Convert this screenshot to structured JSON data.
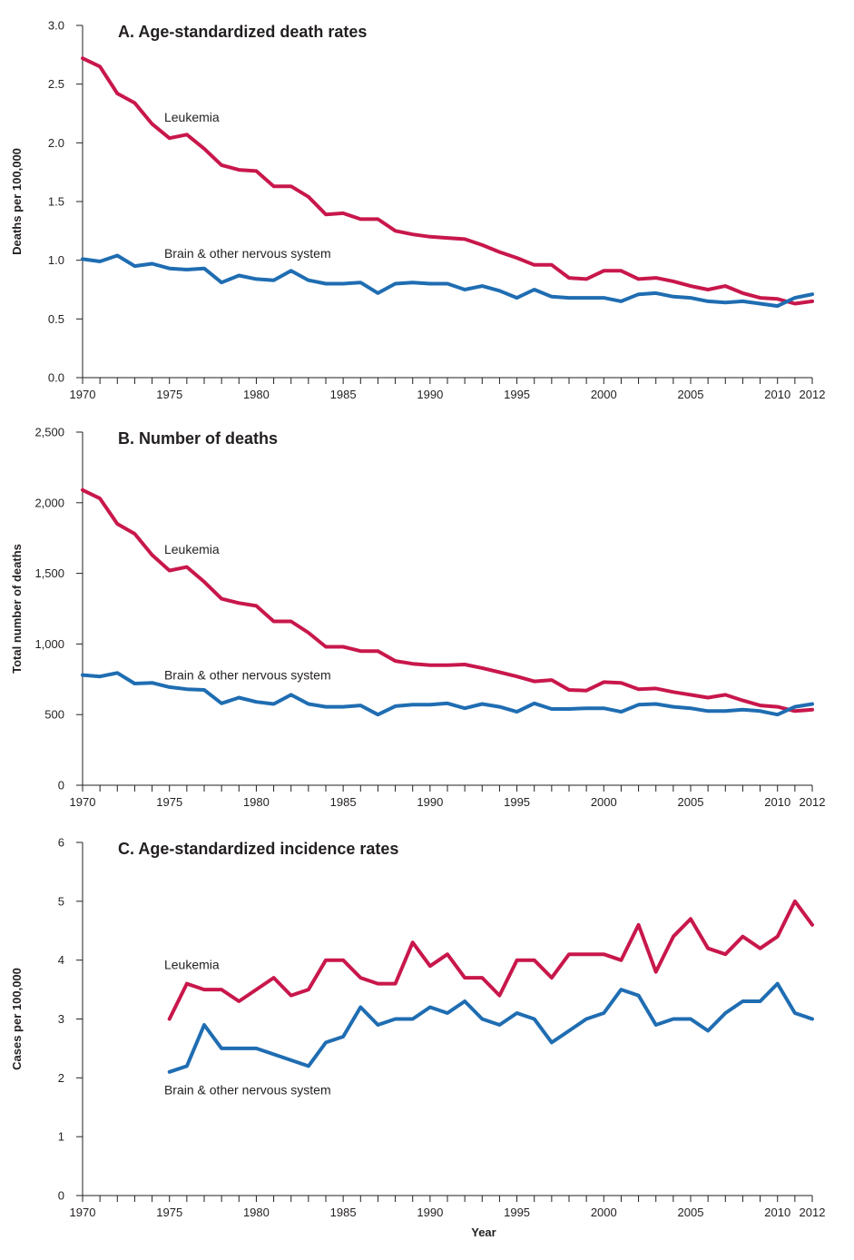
{
  "chart_data": [
    {
      "type": "line",
      "title": "A. Age-standardized death rates",
      "ylabel": "Deaths per 100,000",
      "xlabel": "",
      "ylim": [
        0,
        3.0
      ],
      "xlim": [
        1970,
        2012
      ],
      "yticks": [
        0.0,
        0.5,
        1.0,
        1.5,
        2.0,
        2.5,
        3.0
      ],
      "ytick_labels": [
        "0.0",
        "0.5",
        "1.0",
        "1.5",
        "2.0",
        "2.5",
        "3.0"
      ],
      "xtick_labels": [
        {
          "x": 1970,
          "label": "1970"
        },
        {
          "x": 1975,
          "label": "1975"
        },
        {
          "x": 1980,
          "label": "1980"
        },
        {
          "x": 1985,
          "label": "1985"
        },
        {
          "x": 1990,
          "label": "1990"
        },
        {
          "x": 1995,
          "label": "1995"
        },
        {
          "x": 2000,
          "label": "2000"
        },
        {
          "x": 2005,
          "label": "2005"
        },
        {
          "x": 2010,
          "label": "2010"
        },
        {
          "x": 2012,
          "label": "2012"
        }
      ],
      "grid": false,
      "legend": "inline annotations",
      "series": [
        {
          "name": "Leukemia",
          "color": "#c8174b",
          "x": [
            1970,
            1971,
            1972,
            1973,
            1974,
            1975,
            1976,
            1977,
            1978,
            1979,
            1980,
            1981,
            1982,
            1983,
            1984,
            1985,
            1986,
            1987,
            1988,
            1989,
            1990,
            1991,
            1992,
            1993,
            1994,
            1995,
            1996,
            1997,
            1998,
            1999,
            2000,
            2001,
            2002,
            2003,
            2004,
            2005,
            2006,
            2007,
            2008,
            2009,
            2010,
            2011,
            2012
          ],
          "values": [
            2.72,
            2.65,
            2.42,
            2.34,
            2.16,
            2.04,
            2.07,
            1.95,
            1.81,
            1.77,
            1.76,
            1.63,
            1.63,
            1.54,
            1.39,
            1.4,
            1.35,
            1.35,
            1.25,
            1.22,
            1.2,
            1.19,
            1.18,
            1.13,
            1.07,
            1.02,
            0.96,
            0.96,
            0.85,
            0.84,
            0.91,
            0.91,
            0.84,
            0.85,
            0.82,
            0.78,
            0.75,
            0.78,
            0.72,
            0.68,
            0.67,
            0.63,
            0.65
          ]
        },
        {
          "name": "Brain & other nervous system",
          "color": "#1f6db2",
          "x": [
            1970,
            1971,
            1972,
            1973,
            1974,
            1975,
            1976,
            1977,
            1978,
            1979,
            1980,
            1981,
            1982,
            1983,
            1984,
            1985,
            1986,
            1987,
            1988,
            1989,
            1990,
            1991,
            1992,
            1993,
            1994,
            1995,
            1996,
            1997,
            1998,
            1999,
            2000,
            2001,
            2002,
            2003,
            2004,
            2005,
            2006,
            2007,
            2008,
            2009,
            2010,
            2011,
            2012
          ],
          "values": [
            1.01,
            0.99,
            1.04,
            0.95,
            0.97,
            0.93,
            0.92,
            0.93,
            0.81,
            0.87,
            0.84,
            0.83,
            0.91,
            0.83,
            0.8,
            0.8,
            0.81,
            0.72,
            0.8,
            0.81,
            0.8,
            0.8,
            0.75,
            0.78,
            0.74,
            0.68,
            0.75,
            0.69,
            0.68,
            0.68,
            0.68,
            0.65,
            0.71,
            0.72,
            0.69,
            0.68,
            0.65,
            0.64,
            0.65,
            0.63,
            0.61,
            0.68,
            0.71
          ]
        }
      ],
      "annotations": [
        {
          "text": "Leukemia",
          "x": 1974.7,
          "y": 2.18
        },
        {
          "text": "Brain & other nervous system",
          "x": 1974.7,
          "y": 1.02
        }
      ]
    },
    {
      "type": "line",
      "title": "B. Number of deaths",
      "ylabel": "Total number of deaths",
      "xlabel": "",
      "ylim": [
        0,
        2500
      ],
      "xlim": [
        1970,
        2012
      ],
      "yticks": [
        0,
        500,
        1000,
        1500,
        2000,
        2500
      ],
      "ytick_labels": [
        "0",
        "500",
        "1,000",
        "1,500",
        "2,000",
        "2,500"
      ],
      "xtick_labels": [
        {
          "x": 1970,
          "label": "1970"
        },
        {
          "x": 1975,
          "label": "1975"
        },
        {
          "x": 1980,
          "label": "1980"
        },
        {
          "x": 1985,
          "label": "1985"
        },
        {
          "x": 1990,
          "label": "1990"
        },
        {
          "x": 1995,
          "label": "1995"
        },
        {
          "x": 2000,
          "label": "2000"
        },
        {
          "x": 2005,
          "label": "2005"
        },
        {
          "x": 2010,
          "label": "2010"
        },
        {
          "x": 2012,
          "label": "2012"
        }
      ],
      "grid": false,
      "legend": "inline annotations",
      "series": [
        {
          "name": "Leukemia",
          "color": "#c8174b",
          "x": [
            1970,
            1971,
            1972,
            1973,
            1974,
            1975,
            1976,
            1977,
            1978,
            1979,
            1980,
            1981,
            1982,
            1983,
            1984,
            1985,
            1986,
            1987,
            1988,
            1989,
            1990,
            1991,
            1992,
            1993,
            1994,
            1995,
            1996,
            1997,
            1998,
            1999,
            2000,
            2001,
            2002,
            2003,
            2004,
            2005,
            2006,
            2007,
            2008,
            2009,
            2010,
            2011,
            2012
          ],
          "values": [
            2090,
            2030,
            1850,
            1780,
            1630,
            1520,
            1545,
            1440,
            1320,
            1290,
            1270,
            1160,
            1160,
            1080,
            980,
            980,
            950,
            950,
            880,
            860,
            850,
            850,
            855,
            830,
            800,
            770,
            735,
            745,
            675,
            670,
            730,
            725,
            680,
            685,
            660,
            640,
            620,
            640,
            600,
            565,
            555,
            525,
            535
          ]
        },
        {
          "name": "Brain & other nervous system",
          "color": "#1f6db2",
          "x": [
            1970,
            1971,
            1972,
            1973,
            1974,
            1975,
            1976,
            1977,
            1978,
            1979,
            1980,
            1981,
            1982,
            1983,
            1984,
            1985,
            1986,
            1987,
            1988,
            1989,
            1990,
            1991,
            1992,
            1993,
            1994,
            1995,
            1996,
            1997,
            1998,
            1999,
            2000,
            2001,
            2002,
            2003,
            2004,
            2005,
            2006,
            2007,
            2008,
            2009,
            2010,
            2011,
            2012
          ],
          "values": [
            780,
            770,
            795,
            720,
            725,
            695,
            680,
            675,
            580,
            620,
            590,
            575,
            640,
            575,
            555,
            555,
            565,
            500,
            560,
            570,
            570,
            580,
            545,
            575,
            555,
            520,
            580,
            540,
            540,
            545,
            545,
            520,
            570,
            575,
            555,
            545,
            525,
            525,
            535,
            525,
            500,
            555,
            575
          ]
        }
      ],
      "annotations": [
        {
          "text": "Leukemia",
          "x": 1974.7,
          "y": 1640
        },
        {
          "text": "Brain & other nervous system",
          "x": 1974.7,
          "y": 750
        }
      ]
    },
    {
      "type": "line",
      "title": "C. Age-standardized incidence rates",
      "ylabel": "Cases per 100,000",
      "xlabel": "Year",
      "ylim": [
        0,
        6
      ],
      "xlim": [
        1970,
        2012
      ],
      "yticks": [
        0,
        1,
        2,
        3,
        4,
        5,
        6
      ],
      "ytick_labels": [
        "0",
        "1",
        "2",
        "3",
        "4",
        "5",
        "6"
      ],
      "xtick_labels": [
        {
          "x": 1970,
          "label": "1970"
        },
        {
          "x": 1975,
          "label": "1975"
        },
        {
          "x": 1980,
          "label": "1980"
        },
        {
          "x": 1985,
          "label": "1985"
        },
        {
          "x": 1990,
          "label": "1990"
        },
        {
          "x": 1995,
          "label": "1995"
        },
        {
          "x": 2000,
          "label": "2000"
        },
        {
          "x": 2005,
          "label": "2005"
        },
        {
          "x": 2010,
          "label": "2010"
        },
        {
          "x": 2012,
          "label": "2012"
        }
      ],
      "grid": false,
      "legend": "inline annotations",
      "series": [
        {
          "name": "Leukemia",
          "color": "#c8174b",
          "x": [
            1975,
            1976,
            1977,
            1978,
            1979,
            1980,
            1981,
            1982,
            1983,
            1984,
            1985,
            1986,
            1987,
            1988,
            1989,
            1990,
            1991,
            1992,
            1993,
            1994,
            1995,
            1996,
            1997,
            1998,
            1999,
            2000,
            2001,
            2002,
            2003,
            2004,
            2005,
            2006,
            2007,
            2008,
            2009,
            2010,
            2011,
            2012
          ],
          "values": [
            3.0,
            3.6,
            3.5,
            3.5,
            3.3,
            3.5,
            3.7,
            3.4,
            3.5,
            4.0,
            4.0,
            3.7,
            3.6,
            3.6,
            4.3,
            3.9,
            4.1,
            3.7,
            3.7,
            3.4,
            4.0,
            4.0,
            3.7,
            4.1,
            4.1,
            4.1,
            4.0,
            4.6,
            3.8,
            4.4,
            4.7,
            4.2,
            4.1,
            4.4,
            4.2,
            4.4,
            5.0,
            4.6
          ]
        },
        {
          "name": "Brain & other nervous system",
          "color": "#1f6db2",
          "x": [
            1975,
            1976,
            1977,
            1978,
            1979,
            1980,
            1981,
            1982,
            1983,
            1984,
            1985,
            1986,
            1987,
            1988,
            1989,
            1990,
            1991,
            1992,
            1993,
            1994,
            1995,
            1996,
            1997,
            1998,
            1999,
            2000,
            2001,
            2002,
            2003,
            2004,
            2005,
            2006,
            2007,
            2008,
            2009,
            2010,
            2011,
            2012
          ],
          "values": [
            2.1,
            2.2,
            2.9,
            2.5,
            2.5,
            2.5,
            2.4,
            2.3,
            2.2,
            2.6,
            2.7,
            3.2,
            2.9,
            3.0,
            3.0,
            3.2,
            3.1,
            3.3,
            3.0,
            2.9,
            3.1,
            3.0,
            2.6,
            2.8,
            3.0,
            3.1,
            3.5,
            3.4,
            2.9,
            3.0,
            3.0,
            2.8,
            3.1,
            3.3,
            3.3,
            3.6,
            3.1,
            3.0
          ]
        }
      ],
      "annotations": [
        {
          "text": "Leukemia",
          "x": 1974.7,
          "y": 3.85
        },
        {
          "text": "Brain & other nervous system",
          "x": 1974.7,
          "y": 1.72
        }
      ]
    }
  ]
}
